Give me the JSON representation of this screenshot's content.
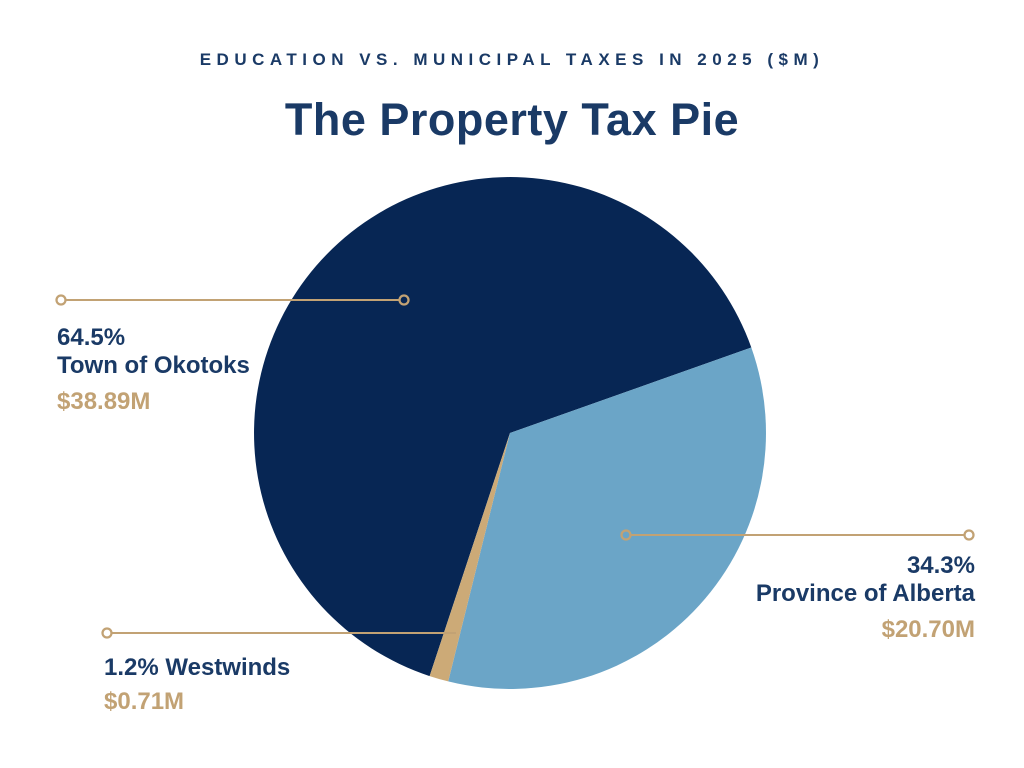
{
  "colors": {
    "text_navy": "#1a3a66",
    "accent_gold": "#c2a274",
    "bg": "#ffffff"
  },
  "chart_data": {
    "type": "pie",
    "subtitle": "EDUCATION VS. MUNICIPAL TAXES IN 2025 ($M)",
    "title": "The Property Tax Pie",
    "unit": "$M",
    "start_angle_deg": 108.3,
    "direction": "clockwise",
    "legend_position": "callouts",
    "slices": [
      {
        "label": "Town of Okotoks",
        "percent": 64.5,
        "value": 38.89,
        "value_label": "$38.89M",
        "color": "#072654"
      },
      {
        "label": "Province of Alberta",
        "percent": 34.3,
        "value": 20.7,
        "value_label": "$20.70M",
        "color": "#6ba5c7"
      },
      {
        "label": "Westwinds",
        "percent": 1.2,
        "value": 0.71,
        "value_label": "$0.71M",
        "color": "#ccaa77"
      }
    ]
  },
  "callouts": {
    "okotoks": {
      "percent": "64.5%",
      "name": "Town of Okotoks",
      "amount": "$38.89M"
    },
    "alberta": {
      "percent": "34.3%",
      "name": "Province of Alberta",
      "amount": "$20.70M"
    },
    "westwinds": {
      "name": "1.2% Westwinds",
      "amount": "$0.71M"
    }
  }
}
